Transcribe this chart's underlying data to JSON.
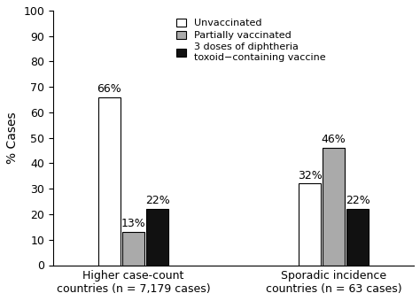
{
  "groups": [
    "Higher case-count\ncountries (n = 7,179 cases)",
    "Sporadic incidence\ncountries (n = 63 cases)"
  ],
  "categories": [
    "Unvaccinated",
    "Partially vaccinated",
    "3 doses of diphtheria\ntoxoid−containing vaccine"
  ],
  "values": [
    [
      66,
      13,
      22
    ],
    [
      32,
      46,
      22
    ]
  ],
  "labels": [
    [
      "66%",
      "13%",
      "22%"
    ],
    [
      "32%",
      "46%",
      "22%"
    ]
  ],
  "colors": [
    "#ffffff",
    "#aaaaaa",
    "#111111"
  ],
  "edge_colors": [
    "#000000",
    "#000000",
    "#000000"
  ],
  "ylabel": "% Cases",
  "ylim": [
    0,
    100
  ],
  "yticks": [
    0,
    10,
    20,
    30,
    40,
    50,
    60,
    70,
    80,
    90,
    100
  ],
  "bar_width": 0.18,
  "group_centers": [
    1.0,
    2.5
  ],
  "legend_labels": [
    "Unvaccinated",
    "Partially vaccinated",
    "3 doses of diphtheria\ntoxoid−containing vaccine"
  ],
  "legend_colors": [
    "#ffffff",
    "#aaaaaa",
    "#111111"
  ],
  "background_color": "#ffffff",
  "label_fontsize": 9,
  "tick_fontsize": 9,
  "ylabel_fontsize": 10
}
